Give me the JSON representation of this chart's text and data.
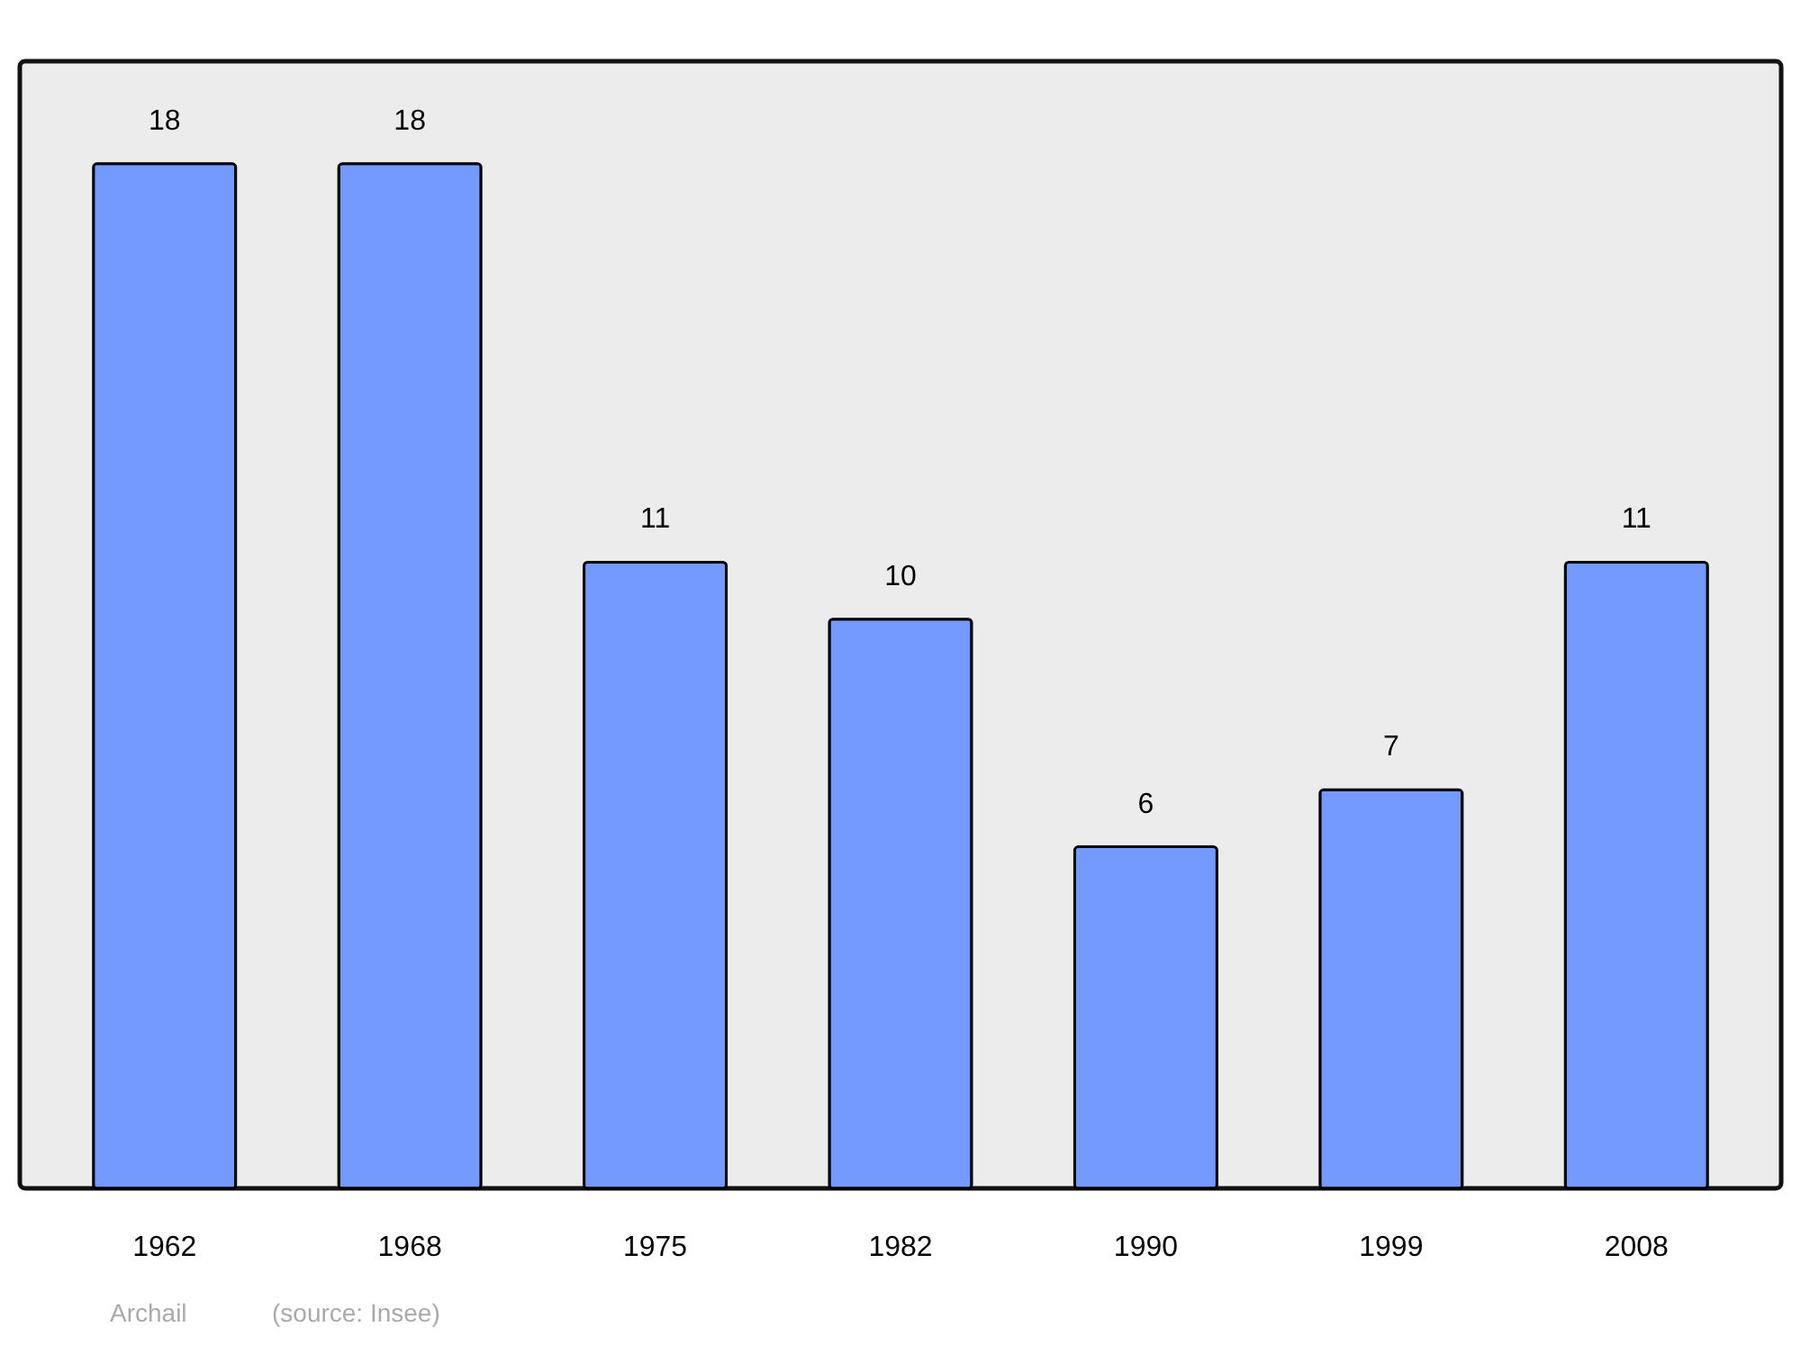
{
  "chart_data": {
    "type": "bar",
    "categories": [
      "1962",
      "1968",
      "1975",
      "1982",
      "1990",
      "1999",
      "2008"
    ],
    "values": [
      18,
      18,
      11,
      10,
      6,
      7,
      11
    ],
    "color": "#7499ff",
    "data_labels": true,
    "annotations": [
      "Archail",
      "(source: Insee)"
    ]
  }
}
